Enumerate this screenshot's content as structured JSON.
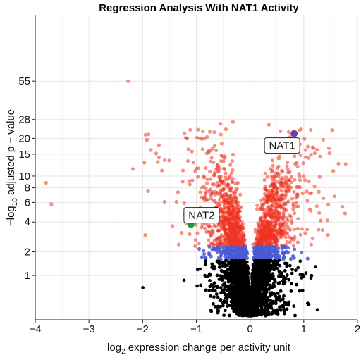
{
  "chart_data": {
    "type": "scatter",
    "title": "Regression Analysis With NAT1 Activity",
    "xlabel_main": "log",
    "xlabel_sub": "2",
    "xlabel_rest": " expression change per activity unit",
    "ylabel_pre": "−log",
    "ylabel_sub": "10",
    "ylabel_rest": " adjusted p − value",
    "x_ticks": [
      -4,
      -3,
      -2,
      -1,
      0,
      1,
      2
    ],
    "x_tick_labels": [
      "−4",
      "−3",
      "−2",
      "−1",
      "0",
      "1",
      "2"
    ],
    "y_ticks": [
      1,
      2,
      4,
      6,
      8,
      10,
      15,
      20,
      28,
      55
    ],
    "y_tick_labels": [
      "1",
      "2",
      "4",
      "6",
      "8",
      "10",
      "15",
      "20",
      "28",
      "55"
    ],
    "xlim": [
      -4,
      2
    ],
    "y_scale": "log1p",
    "ylim": [
      0,
      62
    ],
    "grid": true,
    "colors": {
      "nonsig": "#000000",
      "mid": "#4a5bd4",
      "sig": "#ee3322",
      "sig_outlier": "#f28a6d",
      "nat1": "#6d3fa0",
      "nat2": "#1f9a3c"
    },
    "outliers": [
      {
        "x": -2.27,
        "y": 55
      },
      {
        "x": -3.8,
        "y": 8.8
      },
      {
        "x": -3.7,
        "y": 5.8
      },
      {
        "x": -1.92,
        "y": 19.5
      },
      {
        "x": -1.85,
        "y": 16.2
      },
      {
        "x": -1.75,
        "y": 15.2
      },
      {
        "x": -1.72,
        "y": 13.0
      },
      {
        "x": -1.9,
        "y": 7.5
      },
      {
        "x": -1.95,
        "y": 3.0
      },
      {
        "x": -0.55,
        "y": 26.0
      },
      {
        "x": -0.32,
        "y": 26.8
      },
      {
        "x": -0.75,
        "y": 22.5
      },
      {
        "x": -0.45,
        "y": 23.5
      },
      {
        "x": -0.8,
        "y": 20.5
      },
      {
        "x": 0.35,
        "y": 25.5
      },
      {
        "x": 0.72,
        "y": 22.4
      },
      {
        "x": 0.95,
        "y": 23.5
      },
      {
        "x": 0.68,
        "y": 16.5
      },
      {
        "x": 0.55,
        "y": 14.0
      },
      {
        "x": 1.0,
        "y": 10.0
      },
      {
        "x": 1.2,
        "y": 8.2
      },
      {
        "x": 1.28,
        "y": 7.4
      },
      {
        "x": 0.98,
        "y": 7.2
      },
      {
        "x": 1.72,
        "y": 5.5
      },
      {
        "x": 1.77,
        "y": 4.8
      },
      {
        "x": 1.45,
        "y": 3.0
      },
      {
        "x": 1.55,
        "y": 11.0
      },
      {
        "x": 1.12,
        "y": 5.2
      }
    ],
    "highlighted": [
      {
        "label": "NAT1",
        "x": 0.82,
        "y": 21.8
      },
      {
        "label": "NAT2",
        "x": -1.1,
        "y": 3.8
      }
    ]
  }
}
